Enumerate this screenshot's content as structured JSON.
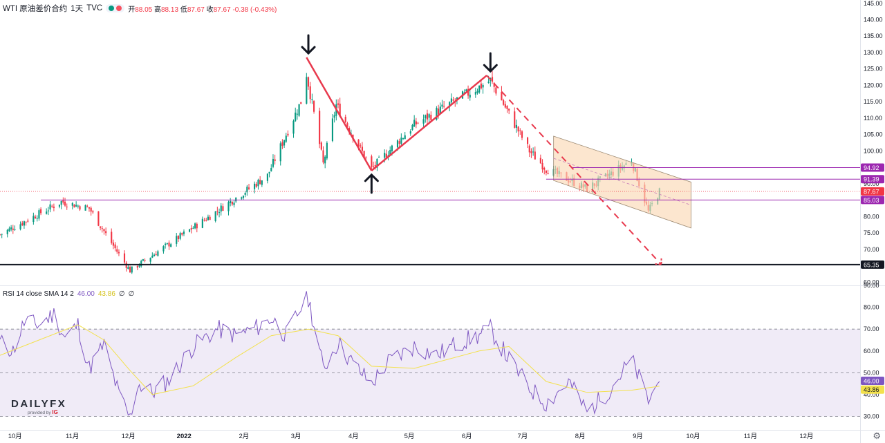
{
  "header": {
    "symbol": "WTI 原油差价合约",
    "interval": "1天",
    "source": "TVC",
    "ohlc": {
      "open_label": "开",
      "open": "88.05",
      "high_label": "高",
      "high": "88.13",
      "low_label": "低",
      "low": "87.67",
      "close_label": "收",
      "close": "87.67",
      "change": "-0.38",
      "change_pct": "(-0.43%)"
    }
  },
  "rsi_header": {
    "label": "RSI 14 close SMA 14 2",
    "rsi_value": "46.00",
    "sma_value": "43.86",
    "empty1": "∅",
    "empty2": "∅"
  },
  "logo": {
    "brand": "DAILYFX",
    "provided_by": "provided by",
    "ig": "IG"
  },
  "colors": {
    "up": "#089981",
    "down": "#f23645",
    "trend": "#e8394d",
    "level": "#9c27b0",
    "support": "#131722",
    "channel_fill": "#fbd9b5",
    "rsi": "#7e57c2",
    "rsi_sma": "#f3e14c",
    "rsi_band": "#ede7f6"
  },
  "icons": {
    "arrow": "arrow-icon",
    "settings": "gear-icon"
  },
  "chart_data": [
    {
      "type": "candlestick",
      "title": "WTI 原油差价合约 · 1天 · TVC",
      "x_ticks": [
        "10月",
        "11月",
        "12月",
        "2022",
        "2月",
        "3月",
        "4月",
        "5月",
        "6月",
        "7月",
        "8月",
        "9月",
        "10月",
        "11月",
        "12月"
      ],
      "y_ticks": [
        60,
        65,
        70,
        75,
        80,
        85,
        90,
        95,
        100,
        105,
        110,
        115,
        120,
        125,
        130,
        135,
        140,
        145
      ],
      "ylim": [
        59,
        146
      ],
      "x_range": [
        "2021-09-23",
        "2022-12-30"
      ],
      "key_points": [
        {
          "date": "2021-09-23",
          "close": 74.5
        },
        {
          "date": "2021-10-26",
          "close": 84.5
        },
        {
          "date": "2021-11-10",
          "close": 82.5
        },
        {
          "date": "2021-11-26",
          "close": 68.5
        },
        {
          "date": "2021-12-02",
          "close": 63.5
        },
        {
          "date": "2021-12-20",
          "close": 70.5
        },
        {
          "date": "2022-01-15",
          "close": 80.5
        },
        {
          "date": "2022-02-14",
          "close": 92.5
        },
        {
          "date": "2022-03-04",
          "close": 115.0
        },
        {
          "date": "2022-03-07",
          "close": 123.5
        },
        {
          "date": "2022-03-16",
          "close": 96.0
        },
        {
          "date": "2022-03-23",
          "close": 114.0
        },
        {
          "date": "2022-04-11",
          "close": 94.5
        },
        {
          "date": "2022-05-04",
          "close": 108.0
        },
        {
          "date": "2022-06-14",
          "close": 121.5
        },
        {
          "date": "2022-07-05",
          "close": 100.0
        },
        {
          "date": "2022-07-14",
          "close": 94.5
        },
        {
          "date": "2022-08-05",
          "close": 88.5
        },
        {
          "date": "2022-08-29",
          "close": 97.0
        },
        {
          "date": "2022-09-07",
          "close": 81.5
        },
        {
          "date": "2022-09-13",
          "close": 87.67
        }
      ],
      "levels": [
        {
          "label": "94.92",
          "value": 94.92,
          "color": "#9c27b0"
        },
        {
          "label": "91.39",
          "value": 91.39,
          "color": "#9c27b0"
        },
        {
          "label": "87.67",
          "value": 87.67,
          "color": "#f23645"
        },
        {
          "label": "85.03",
          "value": 85.03,
          "color": "#9c27b0"
        },
        {
          "label": "65.35",
          "value": 65.35,
          "color": "#131722"
        }
      ],
      "annotations": {
        "trend_lines": [
          {
            "from": {
              "date": "2022-03-07",
              "value": 128.5
            },
            "to": {
              "date": "2022-04-11",
              "value": 94.0
            }
          },
          {
            "from": {
              "date": "2022-04-11",
              "value": 94.0
            },
            "to": {
              "date": "2022-06-12",
              "value": 123.0
            }
          }
        ],
        "projection": {
          "from": {
            "date": "2022-06-12",
            "value": 123.0
          },
          "to": {
            "date": "2022-09-14",
            "value": 65.35
          }
        },
        "channel": {
          "upper": [
            {
              "date": "2022-07-18",
              "value": 104.5
            },
            {
              "date": "2022-09-30",
              "value": 90.5
            }
          ],
          "lower": [
            {
              "date": "2022-07-18",
              "value": 91.0
            },
            {
              "date": "2022-09-30",
              "value": 76.5
            }
          ]
        },
        "arrows": [
          {
            "direction": "down",
            "date": "2022-03-08",
            "value": 128.5
          },
          {
            "direction": "down",
            "date": "2022-06-14",
            "value": 123.0
          },
          {
            "direction": "up",
            "date": "2022-04-11",
            "value": 94.0
          }
        ]
      }
    },
    {
      "type": "line",
      "title": "RSI 14 close SMA 14 2",
      "y_ticks": [
        30,
        40,
        50,
        60,
        70,
        80,
        90
      ],
      "bands": [
        30,
        50,
        70
      ],
      "ylim": [
        27,
        90
      ],
      "series": [
        {
          "name": "RSI",
          "color": "#7e57c2",
          "points": [
            {
              "date": "2021-09-23",
              "value": 64
            },
            {
              "date": "2021-09-30",
              "value": 60
            },
            {
              "date": "2021-10-06",
              "value": 73
            },
            {
              "date": "2021-10-14",
              "value": 72
            },
            {
              "date": "2021-10-22",
              "value": 77
            },
            {
              "date": "2021-10-28",
              "value": 66
            },
            {
              "date": "2021-11-04",
              "value": 72
            },
            {
              "date": "2021-11-10",
              "value": 52
            },
            {
              "date": "2021-11-18",
              "value": 63
            },
            {
              "date": "2021-11-26",
              "value": 40
            },
            {
              "date": "2021-12-02",
              "value": 29
            },
            {
              "date": "2021-12-06",
              "value": 45
            },
            {
              "date": "2021-12-14",
              "value": 41
            },
            {
              "date": "2021-12-22",
              "value": 46
            },
            {
              "date": "2022-01-05",
              "value": 62
            },
            {
              "date": "2022-01-18",
              "value": 70
            },
            {
              "date": "2022-01-28",
              "value": 67
            },
            {
              "date": "2022-02-09",
              "value": 71
            },
            {
              "date": "2022-02-16",
              "value": 75
            },
            {
              "date": "2022-02-24",
              "value": 67
            },
            {
              "date": "2022-03-04",
              "value": 80
            },
            {
              "date": "2022-03-08",
              "value": 84
            },
            {
              "date": "2022-03-16",
              "value": 52
            },
            {
              "date": "2022-03-24",
              "value": 64
            },
            {
              "date": "2022-04-01",
              "value": 54
            },
            {
              "date": "2022-04-11",
              "value": 45
            },
            {
              "date": "2022-04-20",
              "value": 55
            },
            {
              "date": "2022-05-04",
              "value": 62
            },
            {
              "date": "2022-05-16",
              "value": 58
            },
            {
              "date": "2022-05-26",
              "value": 63
            },
            {
              "date": "2022-06-08",
              "value": 67
            },
            {
              "date": "2022-06-14",
              "value": 70
            },
            {
              "date": "2022-06-24",
              "value": 56
            },
            {
              "date": "2022-07-05",
              "value": 43
            },
            {
              "date": "2022-07-14",
              "value": 36
            },
            {
              "date": "2022-07-26",
              "value": 46
            },
            {
              "date": "2022-08-05",
              "value": 32
            },
            {
              "date": "2022-08-16",
              "value": 41
            },
            {
              "date": "2022-08-29",
              "value": 56
            },
            {
              "date": "2022-09-07",
              "value": 37
            },
            {
              "date": "2022-09-13",
              "value": 46
            }
          ]
        },
        {
          "name": "SMA",
          "color": "#f3e14c",
          "points": [
            {
              "date": "2021-09-23",
              "value": 58
            },
            {
              "date": "2021-10-14",
              "value": 65
            },
            {
              "date": "2021-11-04",
              "value": 72
            },
            {
              "date": "2021-11-18",
              "value": 65
            },
            {
              "date": "2021-12-02",
              "value": 51
            },
            {
              "date": "2021-12-14",
              "value": 40
            },
            {
              "date": "2022-01-05",
              "value": 44
            },
            {
              "date": "2022-01-28",
              "value": 57
            },
            {
              "date": "2022-02-16",
              "value": 67
            },
            {
              "date": "2022-03-08",
              "value": 70
            },
            {
              "date": "2022-03-24",
              "value": 67
            },
            {
              "date": "2022-04-11",
              "value": 53
            },
            {
              "date": "2022-05-04",
              "value": 52
            },
            {
              "date": "2022-06-08",
              "value": 60
            },
            {
              "date": "2022-06-24",
              "value": 62
            },
            {
              "date": "2022-07-14",
              "value": 46
            },
            {
              "date": "2022-08-05",
              "value": 41
            },
            {
              "date": "2022-08-29",
              "value": 42
            },
            {
              "date": "2022-09-13",
              "value": 43.86
            }
          ]
        }
      ]
    }
  ]
}
